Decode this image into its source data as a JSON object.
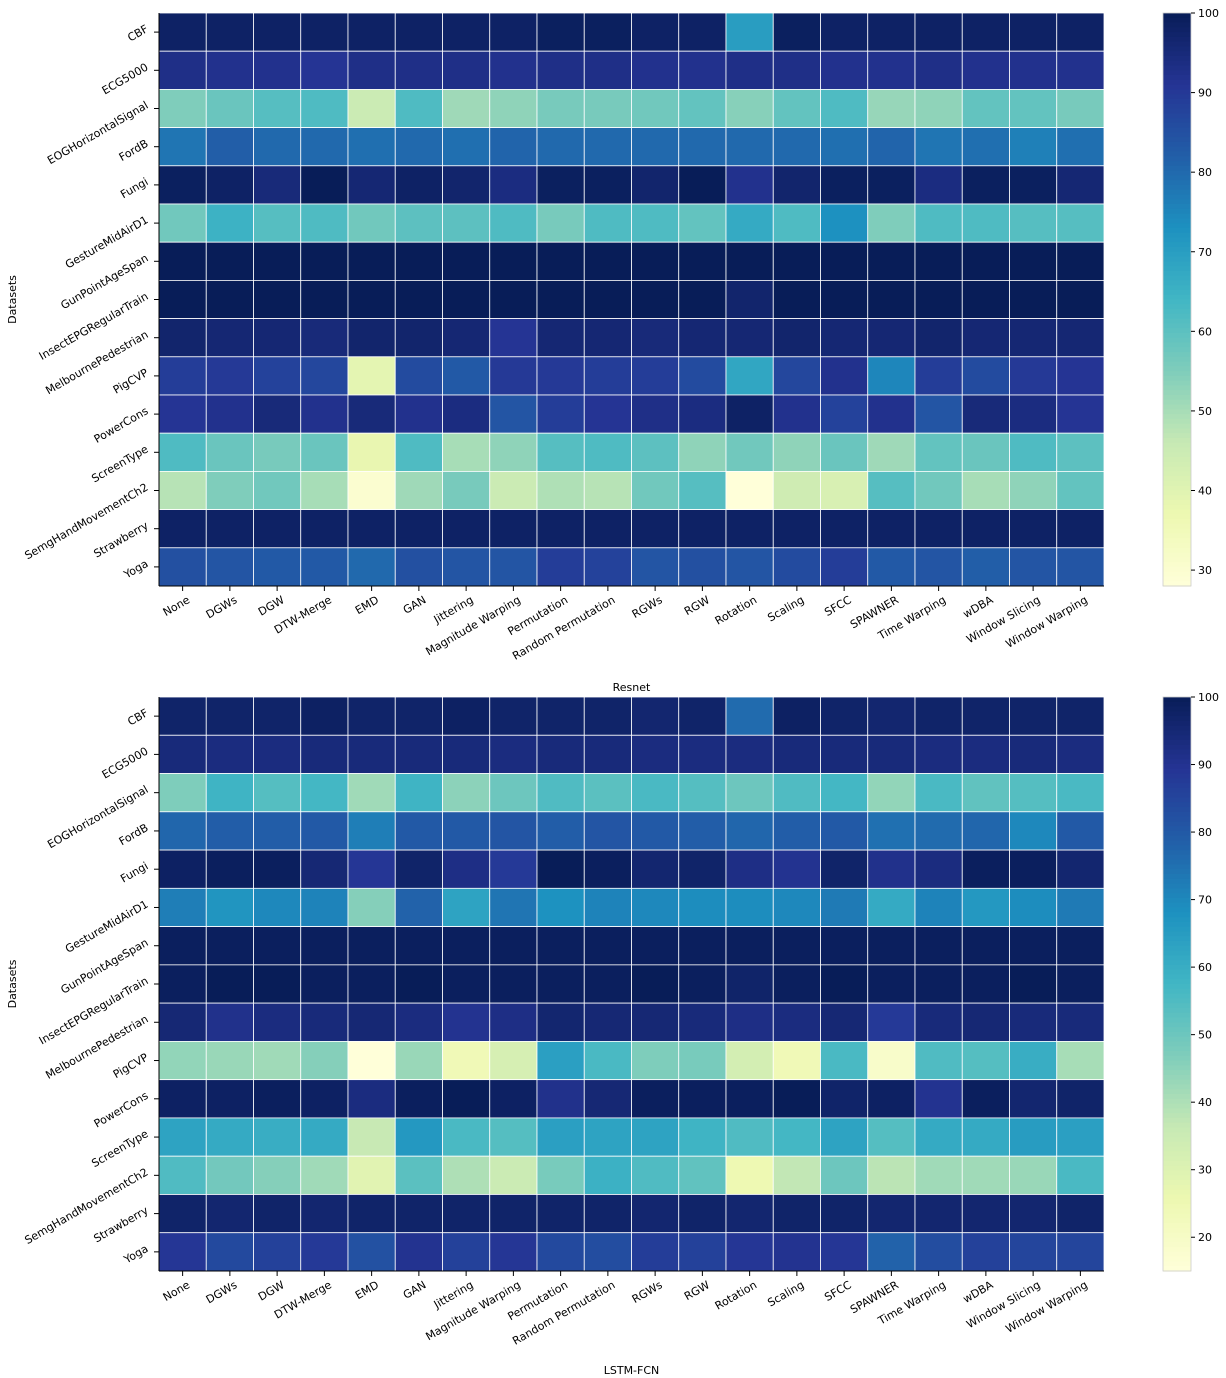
{
  "datasets": [
    "CBF",
    "ECG5000",
    "EOGHorizontalSignal",
    "FordB",
    "Fungi",
    "GestureMidAirD1",
    "GunPointAgeSpan",
    "InsectEPGRegularTrain",
    "MelbournePedestrian",
    "PigCVP",
    "PowerCons",
    "ScreenType",
    "SemgHandMovementCh2",
    "Strawberry",
    "Yoga"
  ],
  "methods": [
    "None",
    "DGWs",
    "DGW",
    "DTW-Merge",
    "EMD",
    "GAN",
    "Jittering",
    "Magnitude Warping",
    "Permutation",
    "Random Permutation",
    "RGWs",
    "RGW",
    "Rotation",
    "Scaling",
    "SFCC",
    "SPAWNER",
    "Time Warping",
    "wDBA",
    "Window Slicing",
    "Window Warping"
  ],
  "chart_data": [
    {
      "type": "heatmap",
      "title": "",
      "xlabel": "Resnet",
      "ylabel": "Datasets",
      "colormap": "YlGnBu",
      "colorbar": {
        "min": 28,
        "max": 100,
        "ticks": [
          30,
          40,
          50,
          60,
          70,
          80,
          90,
          100
        ]
      },
      "values": [
        [
          98,
          98,
          98,
          98,
          98,
          98,
          98,
          98,
          99,
          99,
          98,
          98,
          70,
          99,
          98,
          98,
          98,
          98,
          98,
          98
        ],
        [
          93,
          92,
          92,
          91,
          93,
          93,
          93,
          92,
          93,
          93,
          92,
          92,
          93,
          93,
          92,
          92,
          93,
          92,
          92,
          92
        ],
        [
          55,
          58,
          61,
          62,
          45,
          62,
          51,
          53,
          56,
          56,
          57,
          59,
          54,
          59,
          62,
          52,
          53,
          59,
          59,
          56
        ],
        [
          78,
          82,
          80,
          80,
          79,
          80,
          79,
          81,
          80,
          80,
          80,
          80,
          80,
          80,
          79,
          81,
          78,
          79,
          76,
          79
        ],
        [
          99,
          98,
          95,
          100,
          96,
          98,
          97,
          94,
          99,
          99,
          97,
          100,
          92,
          97,
          99,
          99,
          94,
          99,
          99,
          96
        ],
        [
          57,
          65,
          61,
          62,
          57,
          60,
          60,
          62,
          56,
          62,
          62,
          59,
          67,
          62,
          73,
          55,
          62,
          62,
          61,
          61
        ],
        [
          100,
          100,
          100,
          100,
          100,
          100,
          100,
          100,
          100,
          100,
          100,
          100,
          100,
          100,
          100,
          100,
          100,
          100,
          100,
          100
        ],
        [
          100,
          100,
          100,
          100,
          100,
          100,
          100,
          100,
          100,
          100,
          100,
          100,
          97,
          100,
          100,
          100,
          100,
          100,
          100,
          100
        ],
        [
          97,
          96,
          96,
          95,
          97,
          97,
          96,
          91,
          96,
          96,
          95,
          96,
          96,
          97,
          96,
          96,
          97,
          96,
          96,
          96
        ],
        [
          89,
          90,
          88,
          87,
          39,
          86,
          83,
          90,
          90,
          89,
          89,
          86,
          68,
          87,
          92,
          75,
          89,
          86,
          90,
          91
        ],
        [
          91,
          92,
          95,
          92,
          95,
          92,
          94,
          84,
          89,
          91,
          93,
          94,
          98,
          92,
          88,
          92,
          84,
          95,
          94,
          91
        ],
        [
          62,
          58,
          56,
          58,
          38,
          62,
          50,
          53,
          61,
          62,
          60,
          53,
          57,
          53,
          58,
          51,
          59,
          58,
          62,
          60
        ],
        [
          48,
          55,
          57,
          50,
          30,
          51,
          56,
          45,
          49,
          48,
          57,
          61,
          28,
          44,
          42,
          61,
          57,
          50,
          53,
          59
        ],
        [
          98,
          98,
          98,
          98,
          98,
          98,
          98,
          98,
          98,
          98,
          98,
          98,
          98,
          98,
          98,
          98,
          98,
          98,
          98,
          98
        ],
        [
          85,
          84,
          83,
          83,
          80,
          85,
          84,
          84,
          89,
          88,
          84,
          85,
          84,
          86,
          89,
          83,
          84,
          82,
          84,
          84
        ]
      ]
    },
    {
      "type": "heatmap",
      "title": "",
      "xlabel": "LSTM-FCN",
      "ylabel": "Datasets",
      "colormap": "YlGnBu",
      "colorbar": {
        "min": 15,
        "max": 100,
        "ticks": [
          20,
          30,
          40,
          50,
          60,
          70,
          80,
          90,
          100
        ]
      },
      "values": [
        [
          97,
          97,
          97,
          98,
          97,
          97,
          98,
          97,
          97,
          97,
          96,
          97,
          76,
          98,
          97,
          96,
          97,
          97,
          97,
          97
        ],
        [
          94,
          93,
          93,
          94,
          94,
          94,
          94,
          93,
          94,
          94,
          93,
          93,
          93,
          94,
          94,
          94,
          93,
          93,
          94,
          93
        ],
        [
          47,
          58,
          54,
          57,
          42,
          58,
          45,
          50,
          55,
          53,
          56,
          54,
          50,
          55,
          57,
          44,
          56,
          52,
          54,
          56
        ],
        [
          77,
          79,
          79,
          80,
          72,
          80,
          80,
          81,
          79,
          81,
          80,
          79,
          77,
          79,
          80,
          75,
          76,
          77,
          70,
          80
        ],
        [
          98,
          99,
          99,
          95,
          89,
          97,
          92,
          88,
          100,
          99,
          96,
          97,
          92,
          90,
          97,
          91,
          93,
          99,
          99,
          96
        ],
        [
          72,
          67,
          70,
          71,
          46,
          78,
          63,
          74,
          68,
          71,
          70,
          69,
          69,
          70,
          73,
          61,
          71,
          66,
          69,
          73
        ],
        [
          99,
          99,
          99,
          99,
          99,
          99,
          99,
          99,
          99,
          99,
          99,
          99,
          99,
          99,
          99,
          99,
          99,
          99,
          99,
          99
        ],
        [
          99,
          100,
          100,
          99,
          99,
          100,
          99,
          99,
          99,
          99,
          100,
          99,
          97,
          99,
          100,
          99,
          99,
          99,
          100,
          99
        ],
        [
          95,
          91,
          93,
          94,
          95,
          93,
          90,
          92,
          96,
          95,
          95,
          94,
          92,
          93,
          95,
          88,
          94,
          95,
          94,
          94
        ],
        [
          44,
          43,
          42,
          46,
          15,
          43,
          24,
          32,
          64,
          56,
          47,
          48,
          33,
          24,
          56,
          19,
          55,
          54,
          60,
          41
        ],
        [
          98,
          98,
          99,
          98,
          93,
          99,
          100,
          98,
          91,
          95,
          99,
          99,
          99,
          100,
          97,
          98,
          90,
          99,
          96,
          97
        ],
        [
          63,
          61,
          60,
          61,
          36,
          66,
          56,
          54,
          64,
          63,
          63,
          58,
          55,
          57,
          63,
          54,
          61,
          61,
          65,
          64
        ],
        [
          55,
          49,
          46,
          42,
          29,
          53,
          40,
          35,
          48,
          59,
          55,
          52,
          25,
          37,
          50,
          38,
          42,
          42,
          43,
          56
        ],
        [
          97,
          96,
          97,
          96,
          97,
          97,
          97,
          97,
          97,
          97,
          96,
          97,
          96,
          97,
          97,
          96,
          96,
          96,
          96,
          97
        ],
        [
          89,
          84,
          86,
          88,
          82,
          90,
          86,
          89,
          84,
          83,
          87,
          86,
          89,
          90,
          89,
          78,
          83,
          86,
          85,
          85
        ]
      ]
    }
  ]
}
